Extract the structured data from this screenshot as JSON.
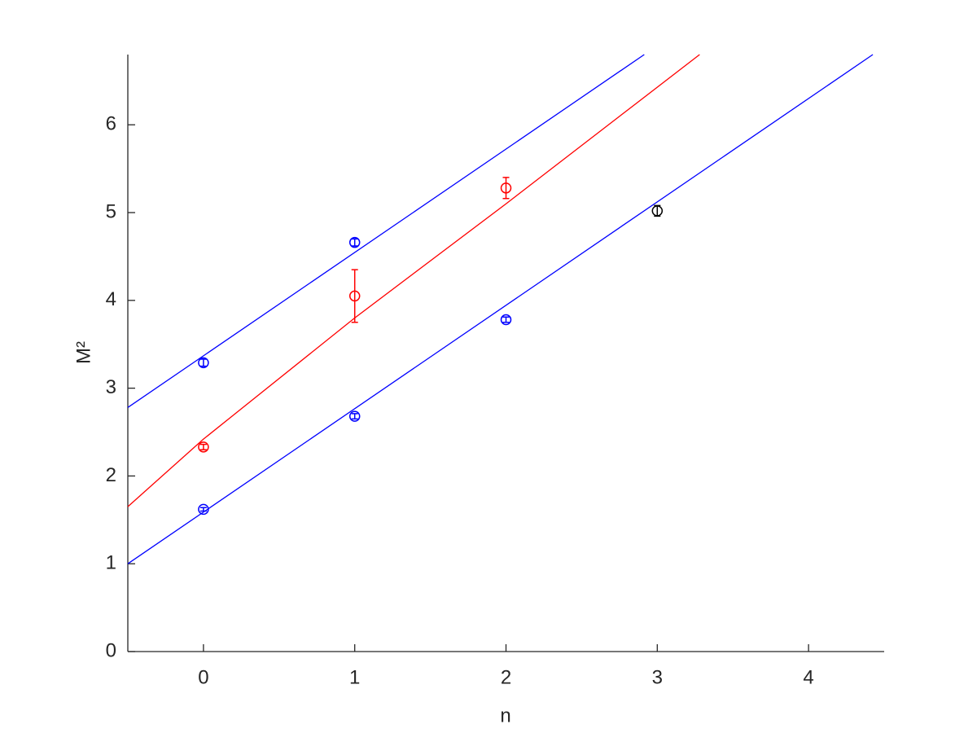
{
  "chart_data": {
    "type": "scatter",
    "xlabel": "n",
    "ylabel": "M²",
    "xlim": [
      -0.5,
      4.5
    ],
    "ylim": [
      0,
      6.8
    ],
    "xticks": [
      0,
      1,
      2,
      3,
      4
    ],
    "yticks": [
      0,
      1,
      2,
      3,
      4,
      5,
      6
    ],
    "grid": false,
    "series": [
      {
        "mode": "line",
        "color": "#0000ff",
        "x": [
          -0.5,
          2.914
        ],
        "values": [
          2.78,
          6.8
        ]
      },
      {
        "mode": "line",
        "color": "#ff0000",
        "x": [
          -0.5,
          0,
          1,
          2,
          3.28
        ],
        "values": [
          1.65,
          2.42,
          3.8,
          5.1,
          6.8
        ]
      },
      {
        "mode": "line",
        "color": "#0000ff",
        "x": [
          -0.5,
          4.425
        ],
        "values": [
          1.0,
          6.8
        ]
      },
      {
        "mode": "markers",
        "color": "#0000ff",
        "x": [
          0,
          1,
          0,
          1,
          2
        ],
        "values": [
          3.29,
          4.66,
          1.62,
          2.68,
          3.78
        ],
        "errors": [
          0.04,
          0.04,
          0.02,
          0.03,
          0.03
        ]
      },
      {
        "mode": "markers",
        "color": "#ff0000",
        "x": [
          0,
          1,
          2
        ],
        "values": [
          2.33,
          4.05,
          5.28
        ],
        "errors": [
          0.03,
          0.3,
          0.12
        ]
      },
      {
        "mode": "markers",
        "color": "#000000",
        "x": [
          3
        ],
        "values": [
          5.02
        ],
        "errors": [
          0.06
        ]
      }
    ]
  }
}
